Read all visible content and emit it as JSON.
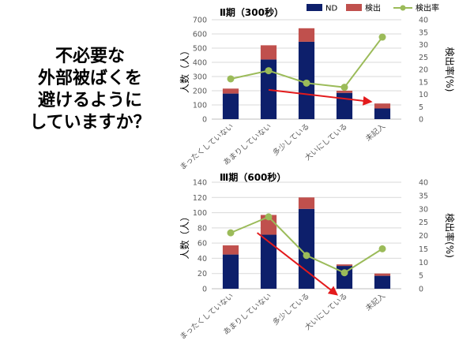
{
  "question": {
    "lines": [
      "不必要な",
      "外部被ばくを",
      "避けるように",
      "していますか？"
    ]
  },
  "legend": {
    "nd": "ND",
    "detected": "検出",
    "rate": "検出率"
  },
  "colors": {
    "nd": "#0d1f6b",
    "detected": "#c0504d",
    "rate": "#9bbb59",
    "arrow": "#e31a1c",
    "grid": "#d9d9d9",
    "axis_text": "#595959"
  },
  "chart_data": [
    {
      "type": "bar",
      "title": "Ⅱ期（300秒）",
      "categories": [
        "まったくしていない",
        "あまりしていない",
        "多少している",
        "大いにしている",
        "未記入"
      ],
      "ylabel": "人数（人）",
      "y2label": "検出率(%)",
      "ylim": [
        0,
        700
      ],
      "yticks": [
        0,
        100,
        200,
        300,
        400,
        500,
        600,
        700
      ],
      "y2lim": [
        0,
        40
      ],
      "y2ticks": [
        0,
        5,
        10,
        15,
        20,
        25,
        30,
        35,
        40
      ],
      "series": [
        {
          "name": "ND",
          "kind": "stacked-bar",
          "values": [
            180,
            420,
            545,
            185,
            75
          ]
        },
        {
          "name": "検出",
          "kind": "stacked-bar",
          "values": [
            35,
            100,
            95,
            15,
            35
          ]
        },
        {
          "name": "検出率",
          "kind": "line",
          "axis": "right",
          "values": [
            16.2,
            19.5,
            14.5,
            12.8,
            33
          ]
        }
      ],
      "legend_position": "top",
      "grid": true,
      "trend_arrow": {
        "from_category": 1,
        "from_y2": 11.8,
        "to_category": 3.7,
        "to_y2": 7
      }
    },
    {
      "type": "bar",
      "title": "Ⅲ期（600秒）",
      "categories": [
        "まったくしていない",
        "あまりしていない",
        "多少している",
        "大いにしている",
        "未記入"
      ],
      "ylabel": "人数（人）",
      "y2label": "検出率(%)",
      "ylim": [
        0,
        140
      ],
      "yticks": [
        0,
        20,
        40,
        60,
        80,
        100,
        120,
        140
      ],
      "y2lim": [
        0,
        40
      ],
      "y2ticks": [
        0,
        5,
        10,
        15,
        20,
        25,
        30,
        35,
        40
      ],
      "series": [
        {
          "name": "ND",
          "kind": "stacked-bar",
          "values": [
            45,
            71,
            105,
            30,
            17
          ]
        },
        {
          "name": "検出",
          "kind": "stacked-bar",
          "values": [
            12,
            26,
            15,
            2,
            3
          ]
        },
        {
          "name": "検出率",
          "kind": "line",
          "axis": "right",
          "values": [
            21,
            27,
            12.5,
            6,
            15
          ]
        }
      ],
      "legend_position": "none",
      "grid": true,
      "trend_arrow": {
        "from_category": 0.7,
        "from_y2": 21,
        "to_category": 2.8,
        "to_y2": -2.2
      }
    }
  ]
}
